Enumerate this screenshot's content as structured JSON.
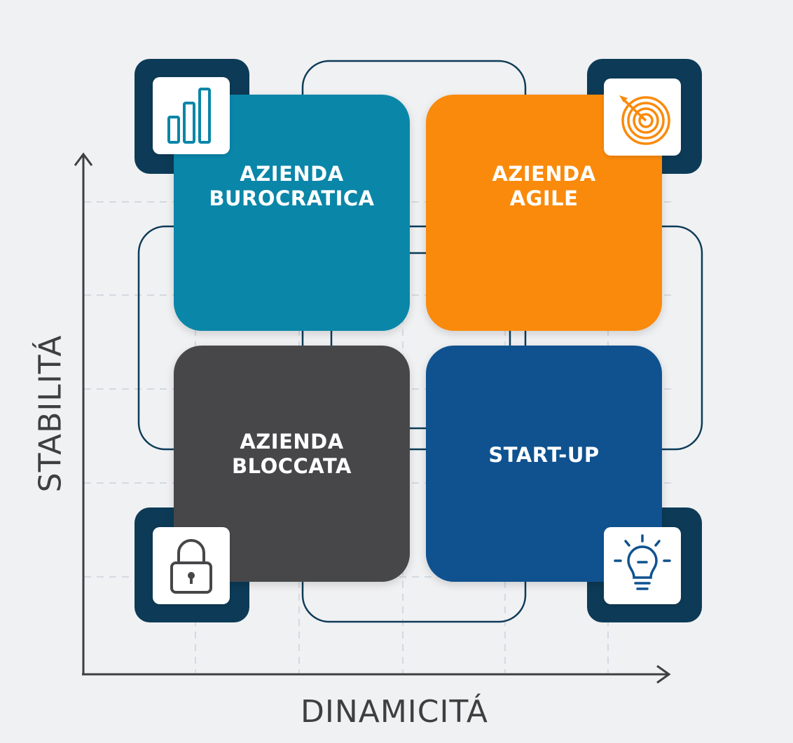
{
  "colors": {
    "background": "#f0f1f3",
    "navy_frame": "#0d3b57",
    "teal": "#0a86a8",
    "orange": "#fa8a0b",
    "dark_gray": "#47474a",
    "blue": "#0f528f",
    "axis": "#3f3f42"
  },
  "axes": {
    "y_label": "STABILITÁ",
    "x_label": "DINAMICITÁ"
  },
  "quadrants": [
    {
      "label": "AZIENDA\nBUROCRATICA",
      "color": "#0a86a8",
      "icon": "bar-chart-icon"
    },
    {
      "label": "AZIENDA\nAGILE",
      "color": "#fa8a0b",
      "icon": "target-icon"
    },
    {
      "label": "AZIENDA\nBLOCCATA",
      "color": "#47474a",
      "icon": "padlock-icon"
    },
    {
      "label": "START-UP",
      "color": "#0f528f",
      "icon": "lightbulb-icon"
    }
  ]
}
